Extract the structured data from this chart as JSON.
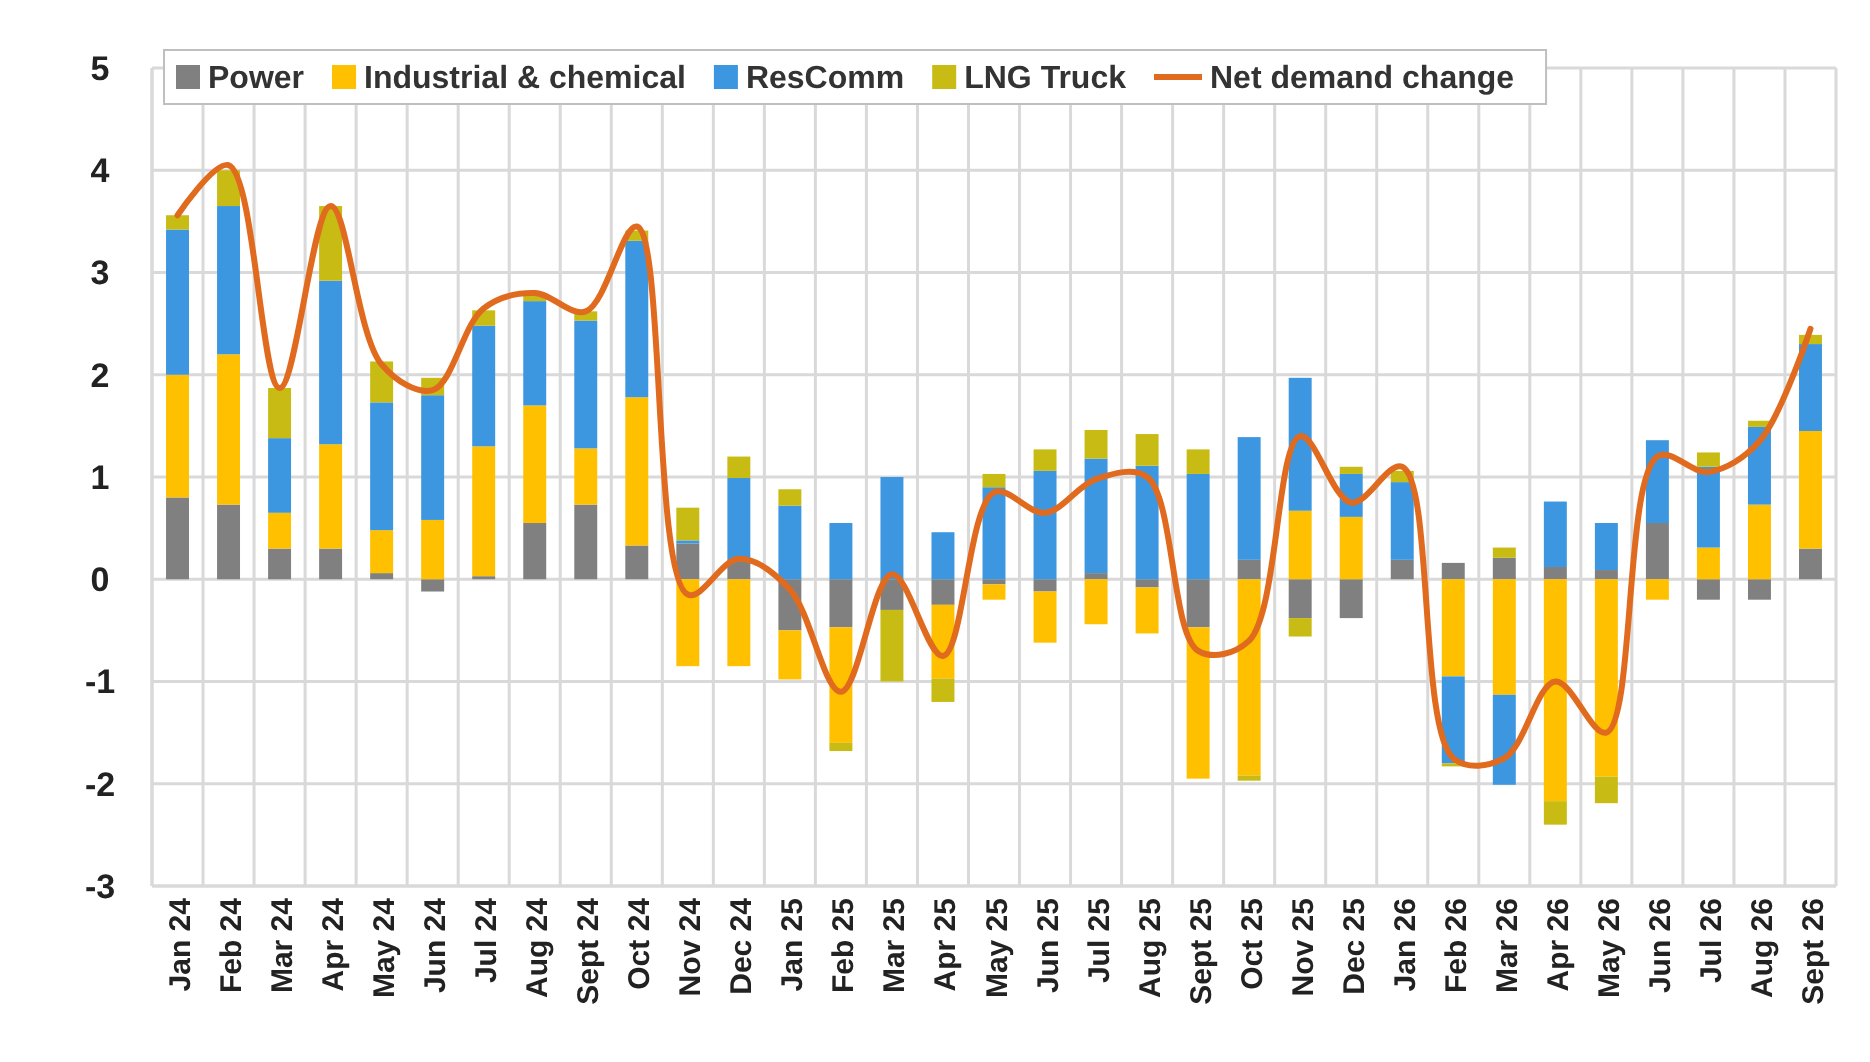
{
  "chart_data": {
    "type": "bar",
    "stacked": true,
    "grid": true,
    "legend": "top",
    "categories": [
      "Jan 24",
      "Feb 24",
      "Mar 24",
      "Apr 24",
      "May 24",
      "Jun 24",
      "Jul 24",
      "Aug 24",
      "Sept 24",
      "Oct 24",
      "Nov 24",
      "Dec 24",
      "Jan 25",
      "Feb 25",
      "Mar 25",
      "Apr 25",
      "May 25",
      "Jun 25",
      "Jul 25",
      "Aug 25",
      "Sept 25",
      "Oct 25",
      "Nov 25",
      "Dec 25",
      "Jan 26",
      "Feb 26",
      "Mar 26",
      "Apr 26",
      "May 26",
      "Jun 26",
      "Jul 26",
      "Aug 26",
      "Sept 26"
    ],
    "ylim": [
      -3,
      5
    ],
    "yticks": [
      -3,
      -2,
      -1,
      0,
      1,
      2,
      3,
      4,
      5
    ],
    "series": [
      {
        "name": "Power",
        "color": "#808080",
        "values": [
          0.8,
          0.73,
          0.3,
          0.3,
          0.06,
          -0.12,
          0.03,
          0.55,
          0.73,
          0.33,
          0.35,
          0.17,
          -0.5,
          -0.47,
          -0.3,
          -0.25,
          -0.05,
          -0.12,
          0.06,
          -0.08,
          -0.47,
          0.19,
          -0.38,
          -0.38,
          0.19,
          0.16,
          0.21,
          0.12,
          0.09,
          0.55,
          -0.2,
          -0.2,
          0.3
        ]
      },
      {
        "name": "Industrial & chemical",
        "color": "#ffc000",
        "values": [
          1.2,
          1.47,
          0.35,
          1.02,
          0.42,
          0.58,
          1.27,
          1.15,
          0.55,
          1.45,
          -0.85,
          -0.85,
          -0.48,
          -1.13,
          null,
          -0.72,
          -0.15,
          -0.5,
          -0.44,
          -0.45,
          -1.48,
          -1.92,
          0.67,
          0.61,
          null,
          -0.95,
          -1.13,
          -2.17,
          -1.93,
          -0.2,
          0.31,
          0.73,
          1.15
        ]
      },
      {
        "name": "ResComm",
        "color": "#3c97e0",
        "values": [
          1.42,
          1.45,
          0.73,
          1.6,
          1.25,
          1.22,
          1.18,
          1.02,
          1.25,
          1.53,
          0.03,
          0.82,
          0.72,
          0.55,
          1.0,
          0.46,
          0.9,
          1.06,
          1.12,
          1.11,
          1.03,
          1.2,
          1.3,
          0.42,
          0.76,
          -0.85,
          -0.88,
          0.64,
          0.46,
          0.81,
          0.79,
          0.76,
          0.85
        ]
      },
      {
        "name": "LNG Truck",
        "color": "#c8bc14",
        "values": [
          0.14,
          0.35,
          0.49,
          0.73,
          0.4,
          0.17,
          0.15,
          0.08,
          0.09,
          0.1,
          0.32,
          0.21,
          0.16,
          -0.08,
          -0.7,
          -0.23,
          0.13,
          0.21,
          0.28,
          0.31,
          0.24,
          -0.05,
          -0.18,
          0.07,
          0.11,
          -0.03,
          0.1,
          -0.23,
          -0.26,
          null,
          0.14,
          0.06,
          0.09
        ]
      },
      {
        "name": "Net demand change",
        "type": "line",
        "color": "#e06b1e",
        "values": [
          3.56,
          4.05,
          1.87,
          3.65,
          2.1,
          1.85,
          2.65,
          2.8,
          2.62,
          3.45,
          -0.15,
          0.2,
          -0.1,
          -1.1,
          0.05,
          -0.75,
          0.85,
          0.65,
          0.98,
          1.0,
          -0.7,
          -0.6,
          1.4,
          0.75,
          1.1,
          -1.75,
          -1.75,
          -1.0,
          -1.5,
          1.2,
          1.05,
          1.35,
          2.45
        ]
      }
    ]
  }
}
